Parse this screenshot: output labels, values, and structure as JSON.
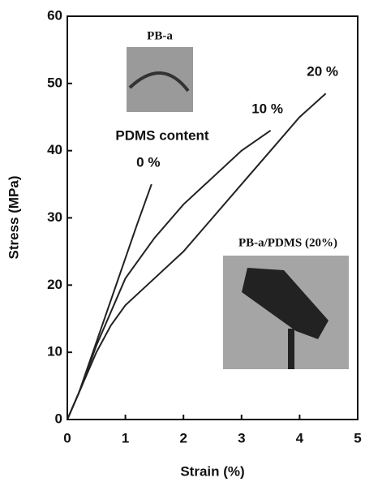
{
  "chart_data": {
    "type": "line",
    "xlabel": "Strain (%)",
    "ylabel": "Stress (MPa)",
    "xlim": [
      0,
      5
    ],
    "xticks": [
      0,
      1,
      2,
      3,
      4,
      5
    ],
    "ylim": [
      0,
      60
    ],
    "yticks": [
      0,
      10,
      20,
      30,
      40,
      50,
      60
    ],
    "legend_title": "PDMS content",
    "annotations": [
      "PB-a",
      "PB-a/PDMS (20%)"
    ],
    "series": [
      {
        "name": "0 %",
        "color": "#222222",
        "x": [
          0,
          0.2,
          0.4,
          0.6,
          0.8,
          1.0,
          1.2,
          1.45
        ],
        "values": [
          0,
          4,
          9,
          14,
          19,
          24,
          29,
          35
        ]
      },
      {
        "name": "10 %",
        "color": "#222222",
        "x": [
          0,
          0.25,
          0.5,
          0.8,
          1.0,
          1.5,
          2.0,
          2.5,
          3.0,
          3.5
        ],
        "values": [
          0,
          5,
          11,
          17,
          21,
          27,
          32,
          36,
          40,
          43
        ]
      },
      {
        "name": "20 %",
        "color": "#222222",
        "x": [
          0,
          0.25,
          0.5,
          0.75,
          1.0,
          1.5,
          2.0,
          2.5,
          3.0,
          3.5,
          4.0,
          4.45
        ],
        "values": [
          0,
          5,
          10,
          14,
          17,
          21,
          25,
          30,
          35,
          40,
          45,
          48.5
        ]
      }
    ]
  }
}
